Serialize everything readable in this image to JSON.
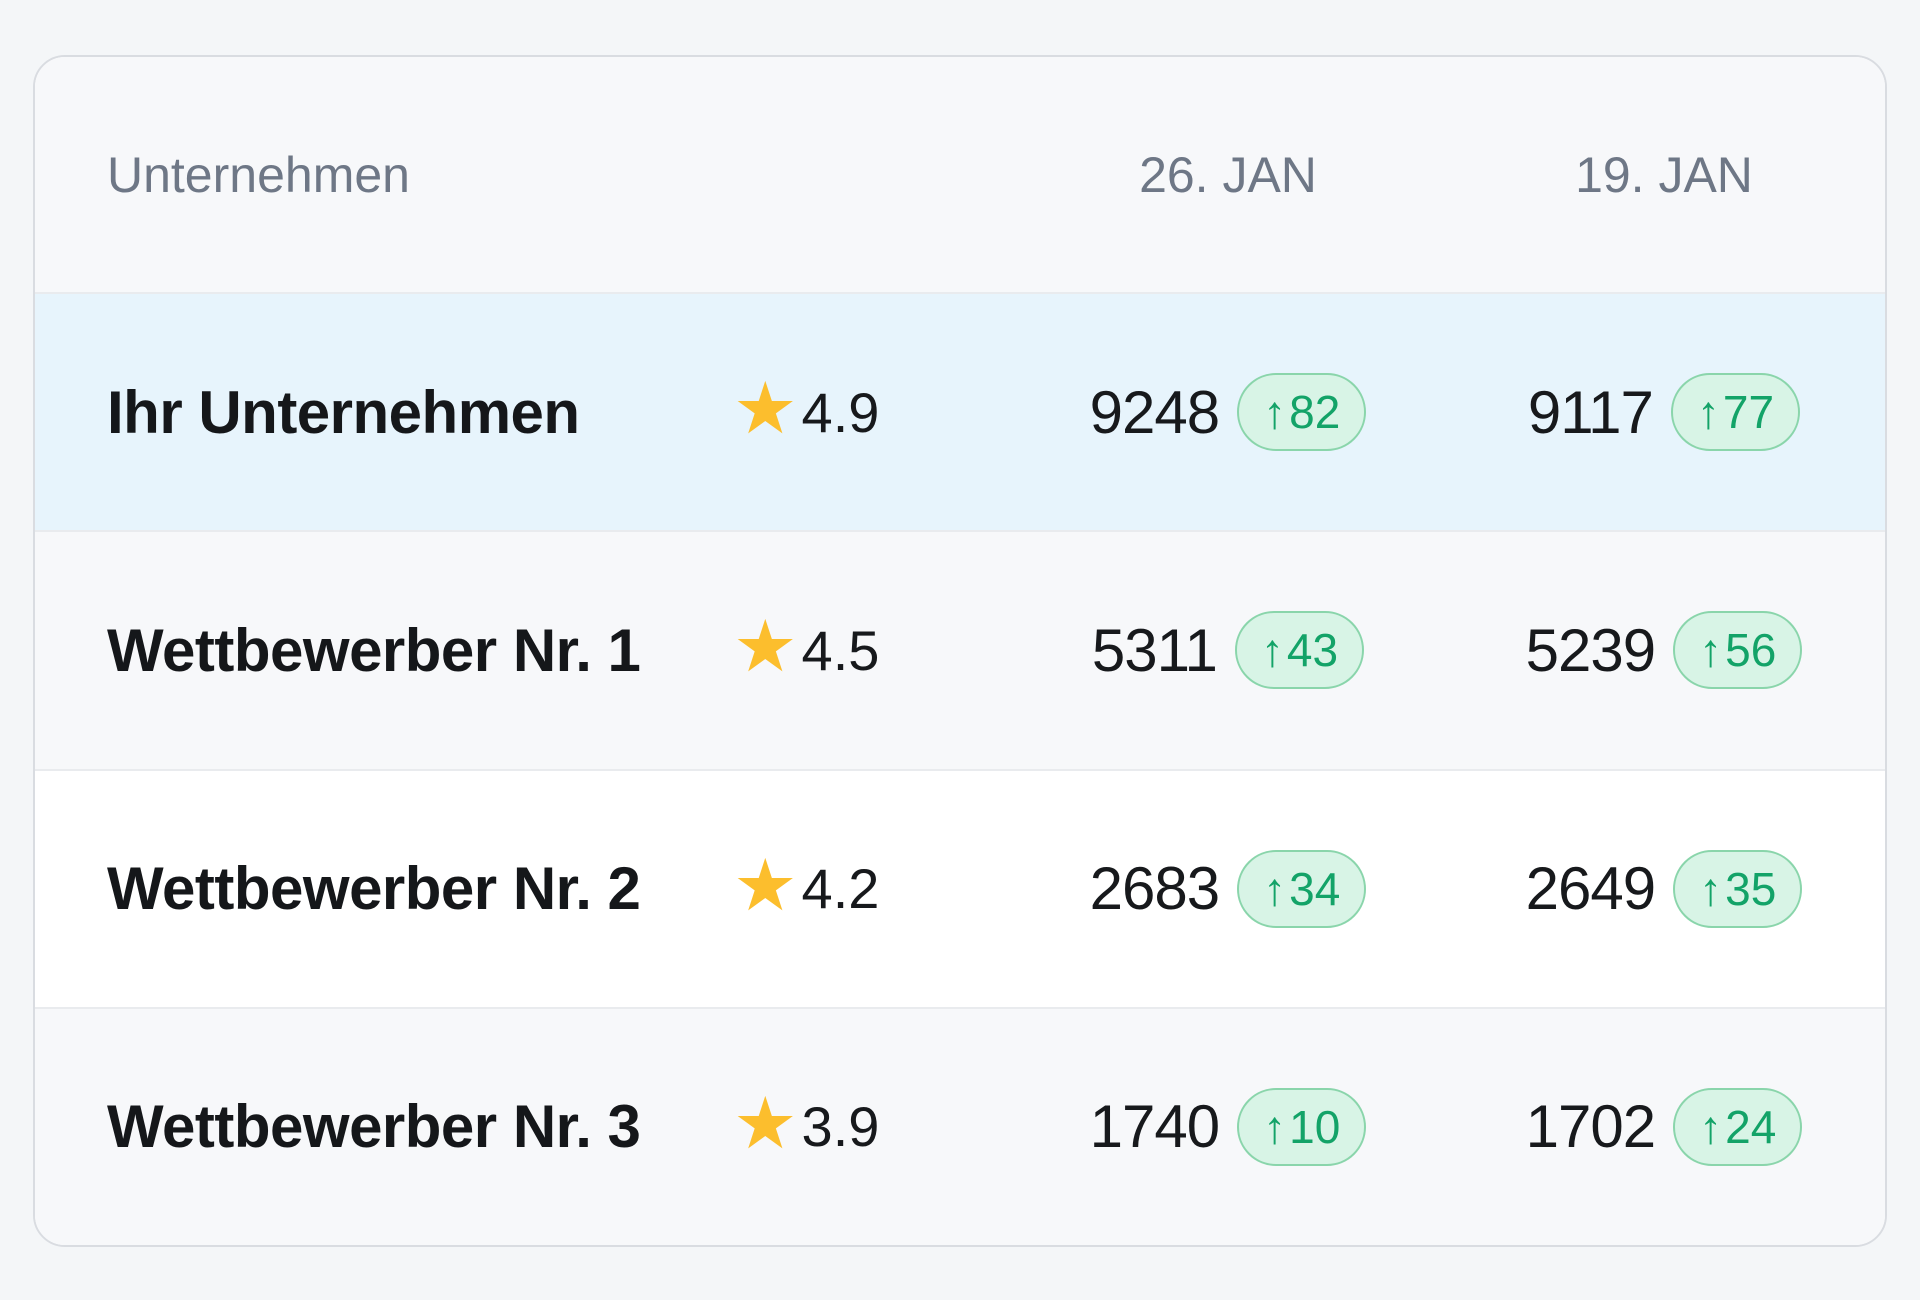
{
  "card": {
    "title_context": "competitor-review-comparison",
    "columns": {
      "company": "Unternehmen",
      "week1": "26. JAN",
      "week2": "19. JAN"
    },
    "rows": [
      {
        "name": "Ihr Unternehmen",
        "rating": "4.9",
        "highlighted": true,
        "week1": {
          "value": "9248",
          "delta": "82"
        },
        "week2": {
          "value": "9117",
          "delta": "77"
        }
      },
      {
        "name": "Wettbewerber Nr. 1",
        "rating": "4.5",
        "highlighted": false,
        "week1": {
          "value": "5311",
          "delta": "43"
        },
        "week2": {
          "value": "5239",
          "delta": "56"
        }
      },
      {
        "name": "Wettbewerber Nr. 2",
        "rating": "4.2",
        "highlighted": false,
        "week1": {
          "value": "2683",
          "delta": "34"
        },
        "week2": {
          "value": "2649",
          "delta": "35"
        }
      },
      {
        "name": "Wettbewerber Nr. 3",
        "rating": "3.9",
        "highlighted": false,
        "week1": {
          "value": "1740",
          "delta": "10"
        },
        "week2": {
          "value": "1702",
          "delta": "24"
        }
      }
    ]
  },
  "icons": {
    "star": "★",
    "arrow_up": "↑"
  },
  "colors": {
    "highlight_row_bg": "#e7f4fc",
    "alt_row_bg": "#f7f8fa",
    "badge_bg": "#d8f4e6",
    "badge_border": "#8ad5ab",
    "badge_text": "#13a368",
    "star": "#fcbe2d",
    "header_text": "#6e7786",
    "body_text": "#17191c",
    "page_bg": "#f4f6f8",
    "card_border": "#d9dce1"
  }
}
